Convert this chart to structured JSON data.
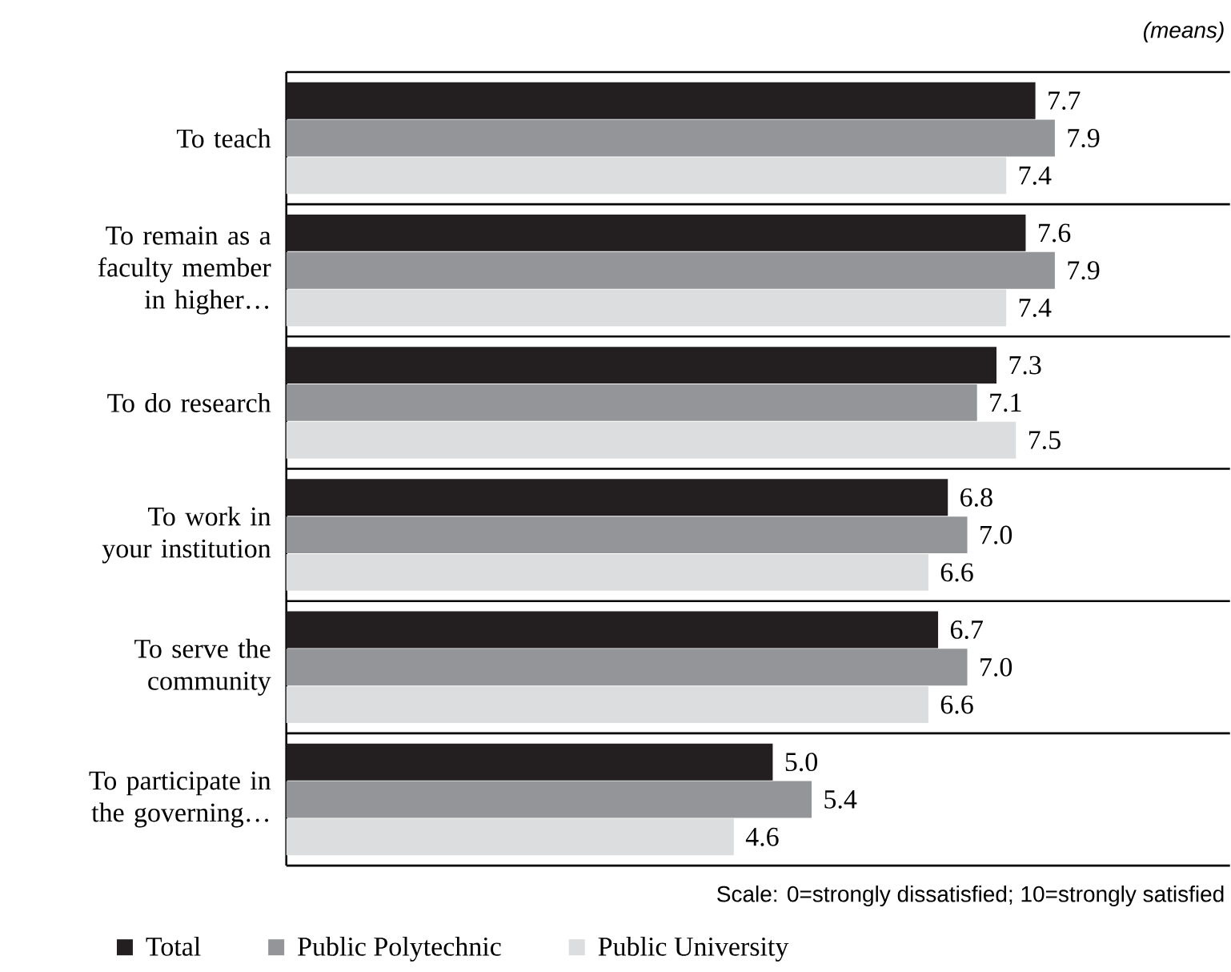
{
  "chart_data": {
    "type": "bar",
    "orientation": "horizontal",
    "categories": [
      "To teach",
      "To remain as a faculty member in higher…",
      "To do research",
      "To work in your institution",
      "To serve the community",
      "To participate in the governing…"
    ],
    "series": [
      {
        "name": "Total",
        "color": "#231f20",
        "values": [
          7.7,
          7.6,
          7.3,
          6.8,
          6.7,
          5.0
        ],
        "value_labels": [
          "7.7",
          "7.6",
          "7.3",
          "6.8",
          "6.7",
          "5.0"
        ]
      },
      {
        "name": "Public Polytechnic",
        "color": "#939598",
        "values": [
          7.9,
          7.9,
          7.1,
          7.0,
          7.0,
          5.4
        ],
        "value_labels": [
          "7.9",
          "7.9",
          "7.1",
          "7.0",
          "7.0",
          "5.4"
        ]
      },
      {
        "name": "Public University",
        "color": "#dcddde",
        "values": [
          7.4,
          7.4,
          7.5,
          6.6,
          6.6,
          4.6
        ],
        "value_labels": [
          "7.4",
          "7.4",
          "7.5",
          "6.6",
          "6.6",
          "4.6"
        ]
      }
    ],
    "xlim": [
      0,
      9.7
    ],
    "grid": "y",
    "legend": "bottom",
    "tick_labels": "y",
    "annotations": [
      "(means)",
      "Scale: 0=strongly dissatisfied;  10=strongly satisfied"
    ]
  }
}
